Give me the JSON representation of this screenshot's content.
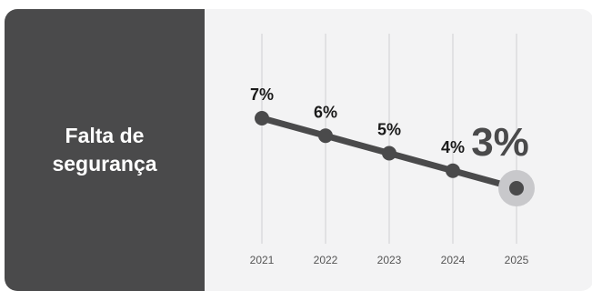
{
  "panel": {
    "title": "Falta de segurança"
  },
  "chart_data": {
    "type": "line",
    "x": [
      "2021",
      "2022",
      "2023",
      "2024",
      "2025"
    ],
    "series": [
      {
        "values": [
          7,
          6,
          5,
          4,
          3
        ],
        "labels": [
          "7%",
          "6%",
          "5%",
          "4%",
          "3%"
        ]
      }
    ],
    "highlight_index": 4,
    "grid": "vertical",
    "colors": {
      "line": "#4a4a4b",
      "highlight_halo": "#c8c8cb",
      "grid": "#cfcfd2",
      "tick_text": "#555555"
    }
  }
}
